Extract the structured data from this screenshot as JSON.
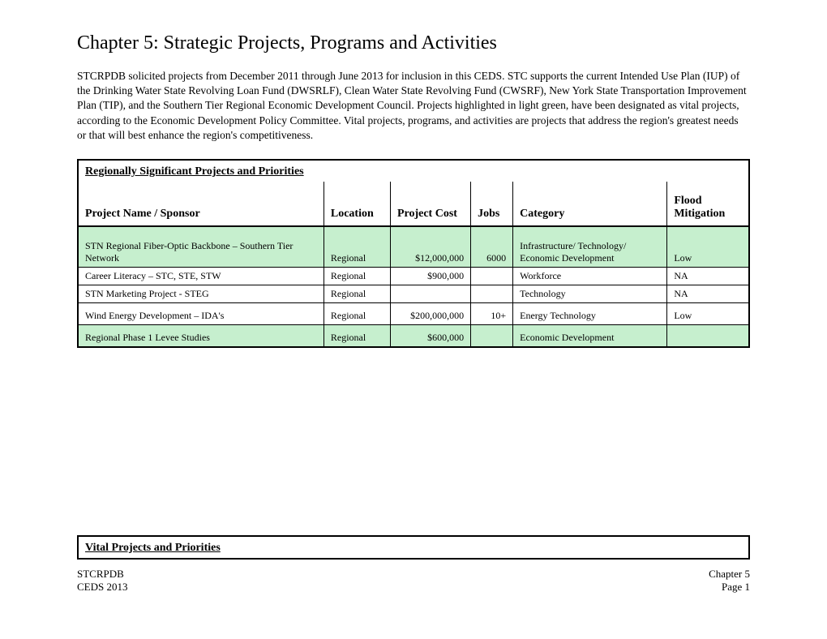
{
  "title": "Chapter 5: Strategic Projects, Programs and Activities",
  "intro": "STCRPDB solicited projects from December 2011 through June 2013 for inclusion in this CEDS.    STC supports the current Intended Use Plan (IUP) of the Drinking Water State Revolving Loan Fund (DWSRLF), Clean Water State Revolving Fund (CWSRF), New York State Transportation Improvement Plan (TIP), and the Southern Tier Regional Economic Development Council.   Projects highlighted in light green, have been designated as vital projects, according to the Economic Development Policy Committee.  Vital projects, programs, and activities are projects that address the region's greatest needs or that will best enhance the region's competitiveness.",
  "table1": {
    "section_title": "Regionally Significant Projects and Priorities",
    "columns": {
      "name": "Project Name / Sponsor",
      "location": "Location",
      "cost": "Project Cost",
      "jobs": "Jobs",
      "category": "Category",
      "flood": "Flood Mitigation"
    },
    "rows": [
      {
        "name": "STN Regional Fiber-Optic Backbone – Southern Tier Network",
        "location": "Regional",
        "cost": "$12,000,000",
        "jobs": "6000",
        "category": "Infrastructure/ Technology/ Economic Development",
        "flood": "Low",
        "highlight": true,
        "tall": true
      },
      {
        "name": "Career Literacy – STC, STE, STW",
        "location": "Regional",
        "cost": "$900,000",
        "jobs": "",
        "category": "Workforce",
        "flood": "NA"
      },
      {
        "name": "STN Marketing Project - STEG",
        "location": "Regional",
        "cost": "",
        "jobs": "",
        "category": "Technology",
        "flood": "NA"
      },
      {
        "name": "Wind Energy Development – IDA's",
        "location": "Regional",
        "cost": "$200,000,000",
        "jobs": "10+",
        "category": "Energy Technology",
        "flood": "Low",
        "mid": true
      },
      {
        "name": "Regional Phase 1 Levee Studies",
        "location": "Regional",
        "cost": "$600,000",
        "jobs": "",
        "category": "Economic Development",
        "flood": "",
        "highlight": true,
        "mid": true
      }
    ]
  },
  "table2": {
    "section_title": "Vital Projects and Priorities"
  },
  "footer": {
    "left1": "STCRPDB",
    "right1": "Chapter 5",
    "left2": "CEDS  2013",
    "right2": "Page 1"
  },
  "colors": {
    "highlight": "#c6efce",
    "background": "#ffffff",
    "border": "#000000"
  }
}
